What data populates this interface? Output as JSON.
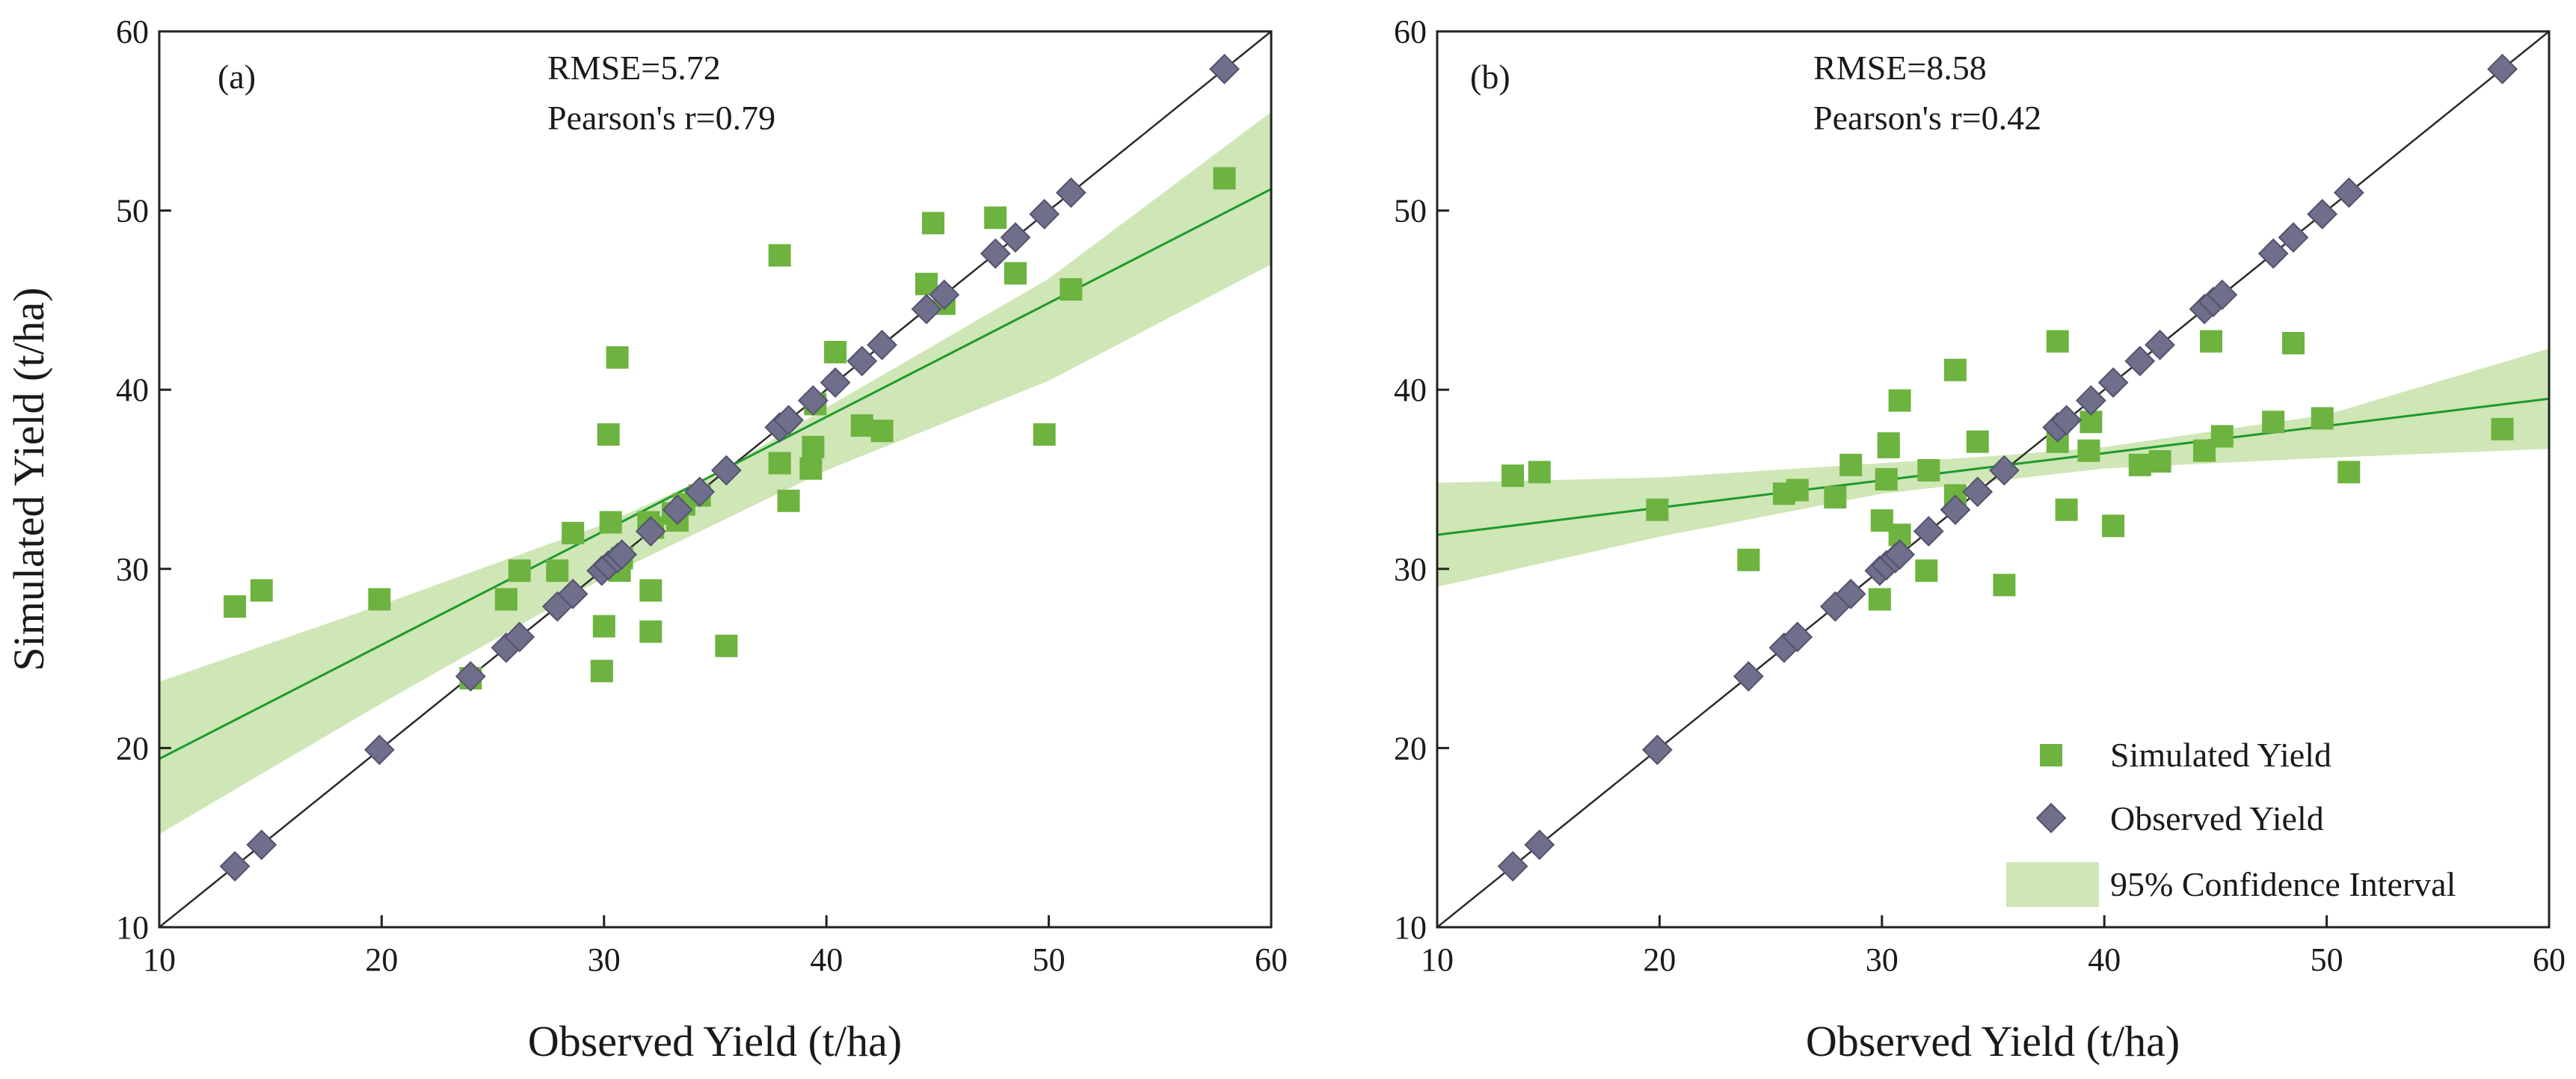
{
  "figure": {
    "colors": {
      "simulated": "#6db33f",
      "observed": "#6f6e8b",
      "observed_edge": "#54536e",
      "fit_line": "#1c9a2c",
      "ci_fill": "#cfe6b6",
      "identity_line": "#2b2b2b",
      "axis": "#222222"
    },
    "legend": {
      "simulated": "Simulated Yield",
      "observed": "Observed Yield",
      "ci": "95% Confidence Interval"
    }
  },
  "chart_data": [
    {
      "type": "scatter",
      "panel_label": "(a)",
      "rmse_text": "RMSE=5.72",
      "pearson_text": "Pearson's r=0.79",
      "xlabel": "Observed Yield (t/ha)",
      "ylabel": "Simulated Yield (t/ha)",
      "xlim": [
        10,
        60
      ],
      "ylim": [
        10,
        60
      ],
      "xticks": [
        10,
        20,
        30,
        40,
        50,
        60
      ],
      "yticks": [
        10,
        20,
        30,
        40,
        50,
        60
      ],
      "show_legend": false,
      "regression": {
        "x": [
          10,
          60
        ],
        "y": [
          19.4,
          51.2
        ]
      },
      "confidence_band": {
        "x": [
          10,
          20,
          30,
          35,
          40,
          50,
          60
        ],
        "upper": [
          23.7,
          28.0,
          32.5,
          35.3,
          39.0,
          46.2,
          55.5
        ],
        "lower": [
          15.2,
          22.5,
          29.5,
          32.5,
          35.5,
          40.5,
          47.0
        ]
      },
      "series": [
        {
          "name": "Simulated Yield",
          "marker": "square",
          "x": [
            13.4,
            14.6,
            19.9,
            24.0,
            25.6,
            26.2,
            27.9,
            28.6,
            29.9,
            30.0,
            30.2,
            30.3,
            30.6,
            30.7,
            30.8,
            32.0,
            32.1,
            32.1,
            32.2,
            33.1,
            33.3,
            33.6,
            34.3,
            35.5,
            37.9,
            37.9,
            38.3,
            39.3,
            39.4,
            39.5,
            40.4,
            41.6,
            42.5,
            44.5,
            44.8,
            45.3,
            47.6,
            48.5,
            49.8,
            51.0,
            57.9
          ],
          "y": [
            27.9,
            28.8,
            28.3,
            23.9,
            28.3,
            29.9,
            29.9,
            32.0,
            24.3,
            26.8,
            37.5,
            32.6,
            41.8,
            29.9,
            30.6,
            32.6,
            28.8,
            26.5,
            32.3,
            33.1,
            32.7,
            33.6,
            34.1,
            25.7,
            35.9,
            47.5,
            33.8,
            35.6,
            36.8,
            39.2,
            42.1,
            38.0,
            37.7,
            45.9,
            49.3,
            44.8,
            49.6,
            46.5,
            37.5,
            45.6,
            51.8
          ]
        },
        {
          "name": "Observed Yield",
          "marker": "diamond",
          "x": [
            13.4,
            14.6,
            19.9,
            24.0,
            25.6,
            26.2,
            27.9,
            28.6,
            29.9,
            30.2,
            30.6,
            30.8,
            32.1,
            33.3,
            34.3,
            35.5,
            37.9,
            38.3,
            39.4,
            40.4,
            41.6,
            42.5,
            44.5,
            45.3,
            47.6,
            48.5,
            49.8,
            51.0,
            57.9
          ],
          "y": [
            13.4,
            14.6,
            19.9,
            24.0,
            25.6,
            26.2,
            27.9,
            28.6,
            29.9,
            30.2,
            30.6,
            30.8,
            32.1,
            33.3,
            34.3,
            35.5,
            37.9,
            38.3,
            39.4,
            40.4,
            41.6,
            42.5,
            44.5,
            45.3,
            47.6,
            48.5,
            49.8,
            51.0,
            57.9
          ]
        }
      ]
    },
    {
      "type": "scatter",
      "panel_label": "(b)",
      "rmse_text": "RMSE=8.58",
      "pearson_text": "Pearson's r=0.42",
      "xlabel": "Observed Yield (t/ha)",
      "ylabel": "",
      "xlim": [
        10,
        60
      ],
      "ylim": [
        10,
        60
      ],
      "xticks": [
        10,
        20,
        30,
        40,
        50,
        60
      ],
      "yticks": [
        10,
        20,
        30,
        40,
        50,
        60
      ],
      "show_legend": true,
      "legend_position": "bottom-right",
      "regression": {
        "x": [
          10,
          60
        ],
        "y": [
          31.9,
          39.5
        ]
      },
      "confidence_band": {
        "x": [
          10,
          20,
          30,
          35,
          40,
          50,
          60
        ],
        "upper": [
          34.8,
          35.1,
          35.9,
          36.3,
          36.8,
          38.6,
          42.3
        ],
        "lower": [
          29.0,
          31.8,
          34.2,
          34.9,
          35.6,
          36.2,
          36.7
        ]
      },
      "series": [
        {
          "name": "Simulated Yield",
          "marker": "square",
          "x": [
            13.4,
            14.6,
            19.9,
            24.0,
            25.6,
            26.2,
            27.9,
            28.6,
            29.9,
            30.0,
            30.2,
            30.3,
            30.3,
            30.8,
            30.8,
            32.0,
            32.1,
            33.3,
            33.3,
            34.3,
            35.5,
            37.9,
            37.9,
            38.3,
            39.3,
            39.4,
            41.6,
            40.4,
            42.5,
            44.5,
            44.8,
            45.3,
            47.6,
            48.5,
            49.8,
            51.0,
            57.9
          ],
          "y": [
            35.2,
            35.4,
            33.3,
            30.5,
            34.2,
            34.4,
            34.0,
            35.8,
            28.3,
            32.7,
            35.0,
            37.0,
            36.8,
            39.4,
            31.9,
            29.9,
            35.5,
            41.1,
            34.1,
            37.1,
            29.1,
            42.7,
            37.1,
            33.3,
            36.6,
            38.2,
            35.8,
            32.4,
            36.0,
            36.6,
            42.7,
            37.4,
            38.2,
            42.6,
            38.4,
            35.4,
            37.8
          ]
        },
        {
          "name": "Observed Yield",
          "marker": "diamond",
          "x": [
            13.4,
            14.6,
            19.9,
            24.0,
            25.6,
            26.2,
            27.9,
            28.6,
            29.9,
            30.2,
            30.6,
            30.8,
            32.1,
            33.3,
            34.3,
            35.5,
            37.9,
            38.3,
            39.4,
            40.4,
            41.6,
            42.5,
            44.5,
            44.9,
            45.3,
            47.6,
            48.5,
            49.8,
            51.0,
            57.9
          ],
          "y": [
            13.4,
            14.6,
            19.9,
            24.0,
            25.6,
            26.2,
            27.9,
            28.6,
            29.9,
            30.2,
            30.6,
            30.8,
            32.1,
            33.3,
            34.3,
            35.5,
            37.9,
            38.3,
            39.4,
            40.4,
            41.6,
            42.5,
            44.5,
            44.9,
            45.3,
            47.6,
            48.5,
            49.8,
            51.0,
            57.9
          ]
        }
      ]
    }
  ]
}
